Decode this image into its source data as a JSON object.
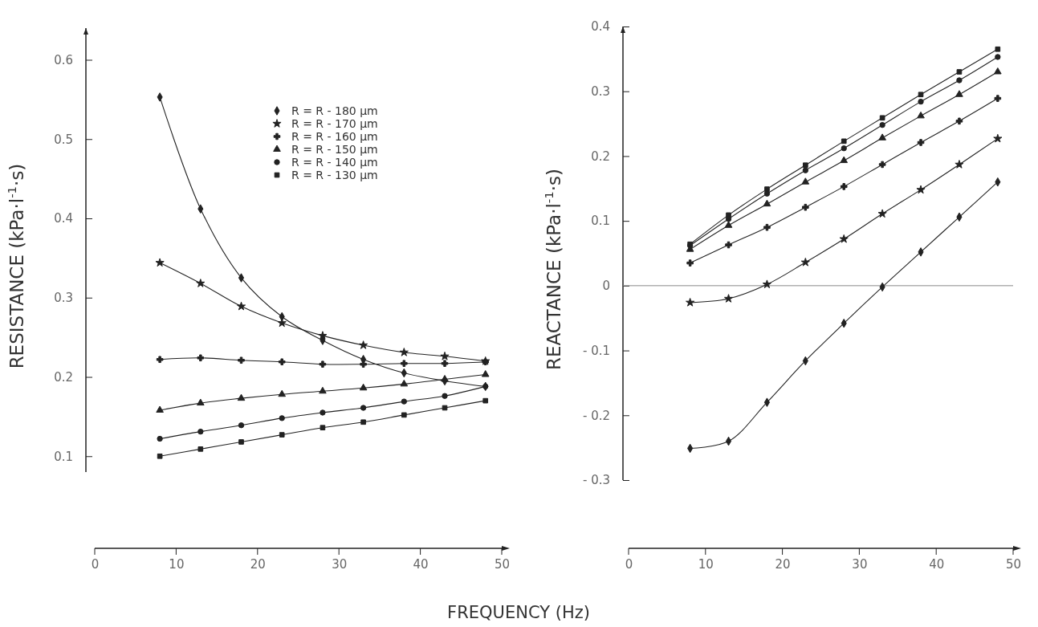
{
  "chart_data": [
    {
      "type": "line",
      "xlabel": "FREQUENCY  (Hz)",
      "ylabel": "RESISTANCE  (kPa·l$^{-1}$·s)",
      "x": [
        8,
        13,
        18,
        23,
        28,
        33,
        38,
        43,
        48
      ],
      "xlim": [
        0,
        50
      ],
      "xticks": [
        0,
        10,
        20,
        30,
        40,
        50
      ],
      "ylim": [
        0.08,
        0.64
      ],
      "yticks": [
        0.1,
        0.2,
        0.3,
        0.4,
        0.5,
        0.6
      ],
      "legend": "top right",
      "series": [
        {
          "name": "R = R - 180 μm",
          "color": "#222222",
          "marker": "diamond",
          "values": [
            0.553,
            0.412,
            0.325,
            0.276,
            0.246,
            0.222,
            0.205,
            0.195,
            0.188
          ]
        },
        {
          "name": "R = R - 170 μm",
          "color": "#222222",
          "marker": "star",
          "values": [
            0.344,
            0.318,
            0.289,
            0.268,
            0.252,
            0.24,
            0.231,
            0.226,
            0.22
          ]
        },
        {
          "name": "R = R - 160 μm",
          "color": "#222222",
          "marker": "cross",
          "values": [
            0.222,
            0.224,
            0.221,
            0.219,
            0.216,
            0.216,
            0.217,
            0.217,
            0.219
          ]
        },
        {
          "name": "R = R - 150 μm",
          "color": "#222222",
          "marker": "triangle",
          "values": [
            0.158,
            0.167,
            0.173,
            0.178,
            0.182,
            0.186,
            0.191,
            0.197,
            0.203
          ]
        },
        {
          "name": "R = R - 140 μm",
          "color": "#222222",
          "marker": "circle",
          "values": [
            0.122,
            0.131,
            0.139,
            0.148,
            0.155,
            0.161,
            0.169,
            0.176,
            0.188
          ]
        },
        {
          "name": "R = R - 130 μm",
          "color": "#222222",
          "marker": "square",
          "values": [
            0.1,
            0.109,
            0.118,
            0.127,
            0.136,
            0.143,
            0.152,
            0.161,
            0.17
          ]
        }
      ]
    },
    {
      "type": "line",
      "ylabel": "REACTANCE  (kPa·l$^{-1}$·s)",
      "x": [
        8,
        13,
        18,
        23,
        28,
        33,
        38,
        43,
        48
      ],
      "xlim": [
        0,
        50
      ],
      "xticks": [
        0,
        10,
        20,
        30,
        40,
        50
      ],
      "ylim": [
        -0.3,
        0.4
      ],
      "yticks": [
        {
          "value": -0.3,
          "label": "- 0.3"
        },
        {
          "value": -0.2,
          "label": "- 0.2"
        },
        {
          "value": -0.1,
          "label": "- 0.1"
        },
        0,
        0.1,
        0.2,
        0.3,
        0.4
      ],
      "ref_lines": [
        {
          "axis": "y",
          "value": 0,
          "color": "#888888"
        }
      ],
      "series": [
        {
          "color": "#222222",
          "marker": "diamond",
          "values": [
            -0.251,
            -0.24,
            -0.18,
            -0.116,
            -0.058,
            -0.002,
            0.052,
            0.106,
            0.16
          ]
        },
        {
          "color": "#222222",
          "marker": "star",
          "values": [
            -0.026,
            -0.02,
            0.002,
            0.036,
            0.072,
            0.111,
            0.148,
            0.187,
            0.227
          ]
        },
        {
          "color": "#222222",
          "marker": "cross",
          "values": [
            0.035,
            0.063,
            0.09,
            0.121,
            0.153,
            0.187,
            0.221,
            0.254,
            0.289
          ]
        },
        {
          "color": "#222222",
          "marker": "triangle",
          "values": [
            0.056,
            0.093,
            0.126,
            0.16,
            0.193,
            0.228,
            0.262,
            0.295,
            0.33
          ]
        },
        {
          "color": "#222222",
          "marker": "circle",
          "values": [
            0.062,
            0.103,
            0.142,
            0.178,
            0.212,
            0.248,
            0.284,
            0.317,
            0.353
          ]
        },
        {
          "color": "#222222",
          "marker": "square",
          "values": [
            0.064,
            0.109,
            0.149,
            0.186,
            0.223,
            0.259,
            0.295,
            0.33,
            0.365
          ]
        }
      ]
    }
  ]
}
